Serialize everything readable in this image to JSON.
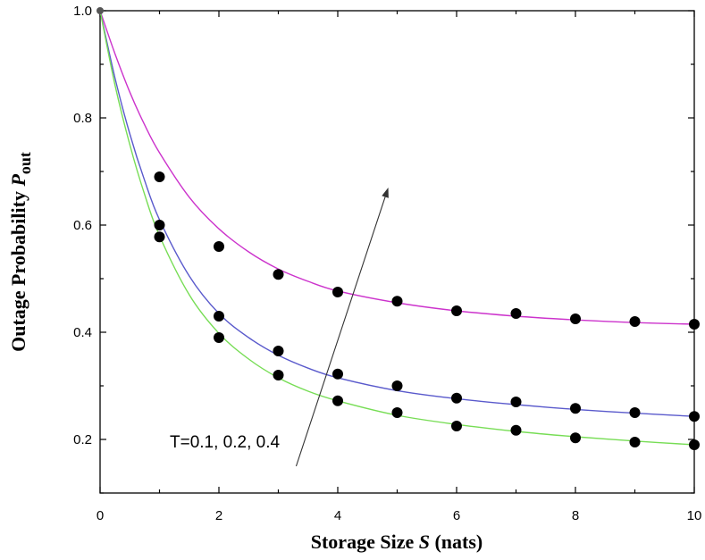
{
  "chart_data": {
    "type": "line",
    "title": "",
    "xlabel": {
      "main": "Storage Size ",
      "var": "S",
      "tail": " (nats)"
    },
    "ylabel": {
      "main": "Outage Probability ",
      "var": "P",
      "sub": "out"
    },
    "xlim": [
      0,
      10
    ],
    "ylim": [
      0.1,
      1.0
    ],
    "xticks": [
      "0",
      "2",
      "4",
      "6",
      "8",
      "10"
    ],
    "yticks": [
      "0.2",
      "0.4",
      "0.6",
      "0.8",
      "1.0"
    ],
    "grid": false,
    "annotation": "T=0.1, 0.2, 0.4",
    "series": [
      {
        "color": "#cc33cc",
        "x": [
          1,
          2,
          3,
          4,
          5,
          6,
          7,
          8,
          9,
          10
        ],
        "values": [
          0.69,
          0.56,
          0.508,
          0.475,
          0.458,
          0.44,
          0.435,
          0.425,
          0.42,
          0.415
        ],
        "curve": [
          [
            0,
            1.0
          ],
          [
            0.25,
            0.92
          ],
          [
            0.5,
            0.848
          ],
          [
            0.75,
            0.787
          ],
          [
            1,
            0.735
          ],
          [
            1.5,
            0.652
          ],
          [
            2,
            0.593
          ],
          [
            2.5,
            0.55
          ],
          [
            3,
            0.518
          ],
          [
            3.5,
            0.495
          ],
          [
            4,
            0.477
          ],
          [
            5,
            0.455
          ],
          [
            6,
            0.44
          ],
          [
            7,
            0.43
          ],
          [
            8,
            0.423
          ],
          [
            9,
            0.418
          ],
          [
            10,
            0.415
          ]
        ]
      },
      {
        "color": "#5a5acc",
        "x": [
          1,
          2,
          3,
          4,
          5,
          6,
          7,
          8,
          9,
          10
        ],
        "values": [
          0.6,
          0.43,
          0.365,
          0.322,
          0.3,
          0.277,
          0.27,
          0.258,
          0.25,
          0.243
        ],
        "curve": [
          [
            0,
            1.0
          ],
          [
            0.25,
            0.875
          ],
          [
            0.5,
            0.77
          ],
          [
            0.75,
            0.683
          ],
          [
            1,
            0.61
          ],
          [
            1.5,
            0.505
          ],
          [
            2,
            0.435
          ],
          [
            2.5,
            0.39
          ],
          [
            3,
            0.357
          ],
          [
            3.5,
            0.333
          ],
          [
            4,
            0.315
          ],
          [
            5,
            0.291
          ],
          [
            6,
            0.276
          ],
          [
            7,
            0.265
          ],
          [
            8,
            0.256
          ],
          [
            9,
            0.249
          ],
          [
            10,
            0.243
          ]
        ]
      },
      {
        "color": "#77dd55",
        "x": [
          1,
          2,
          3,
          4,
          5,
          6,
          7,
          8,
          9,
          10
        ],
        "values": [
          0.578,
          0.39,
          0.32,
          0.272,
          0.25,
          0.225,
          0.217,
          0.203,
          0.195,
          0.19
        ],
        "curve": [
          [
            0,
            1.0
          ],
          [
            0.25,
            0.862
          ],
          [
            0.5,
            0.75
          ],
          [
            0.75,
            0.657
          ],
          [
            1,
            0.58
          ],
          [
            1.5,
            0.47
          ],
          [
            2,
            0.398
          ],
          [
            2.5,
            0.35
          ],
          [
            3,
            0.315
          ],
          [
            3.5,
            0.29
          ],
          [
            4,
            0.272
          ],
          [
            5,
            0.245
          ],
          [
            6,
            0.228
          ],
          [
            7,
            0.215
          ],
          [
            8,
            0.205
          ],
          [
            9,
            0.197
          ],
          [
            10,
            0.19
          ]
        ]
      }
    ],
    "arrow": {
      "from": [
        3.3,
        0.15
      ],
      "to": [
        4.85,
        0.67
      ],
      "color": "#333333"
    },
    "marker_color": "#000000"
  }
}
